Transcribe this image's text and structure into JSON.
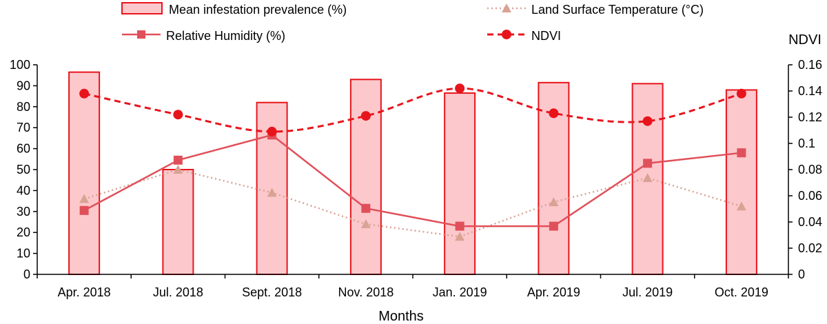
{
  "chart_data": {
    "type": "bar",
    "title": "",
    "xlabel": "Months",
    "ylabel": "",
    "y2label": "NDVI",
    "categories": [
      "Apr. 2018",
      "Jul. 2018",
      "Sept. 2018",
      "Nov. 2018",
      "Jan. 2019",
      "Apr. 2019",
      "Jul. 2019",
      "Oct. 2019"
    ],
    "ylim": [
      0,
      100
    ],
    "y2lim": [
      0,
      0.16
    ],
    "yticks": [
      "0",
      "10",
      "20",
      "30",
      "40",
      "50",
      "60",
      "70",
      "80",
      "90",
      "100"
    ],
    "y2ticks": [
      "0",
      "0.02",
      "0.04",
      "0.06",
      "0.08",
      "0.1",
      "0.12",
      "0.14",
      "0.16"
    ],
    "series": [
      {
        "name": "Mean infestation prevalence (%)",
        "type": "bar",
        "axis": "left",
        "color": "#e8141c",
        "fill": "#fcc8cc",
        "values": [
          96.5,
          50,
          82,
          93,
          86.5,
          91.5,
          91,
          88
        ]
      },
      {
        "name": "Land Surface Temperature (°C)",
        "type": "line",
        "style": "dotted",
        "marker": "triangle",
        "axis": "left",
        "color": "#d9a294",
        "values": [
          36,
          50,
          39,
          24,
          18,
          34.5,
          46,
          32.5
        ]
      },
      {
        "name": "Relative Humidity (%)",
        "type": "line",
        "style": "solid",
        "marker": "square",
        "axis": "left",
        "color": "#e0505a",
        "values": [
          30.5,
          54.5,
          66.5,
          31.5,
          23,
          23,
          53,
          58
        ]
      },
      {
        "name": "NDVI",
        "type": "line",
        "style": "dashed",
        "marker": "circle",
        "axis": "right",
        "color": "#e8141c",
        "values": [
          0.138,
          0.122,
          0.109,
          0.121,
          0.142,
          0.123,
          0.117,
          0.138
        ]
      }
    ],
    "legend": [
      {
        "label": "Mean infestation prevalence (%)",
        "series": 0
      },
      {
        "label": "Land Surface Temperature (°C)",
        "series": 1
      },
      {
        "label": "Relative Humidity (%)",
        "series": 2
      },
      {
        "label": "NDVI",
        "series": 3
      }
    ],
    "legend_position": "top",
    "grid": false
  }
}
